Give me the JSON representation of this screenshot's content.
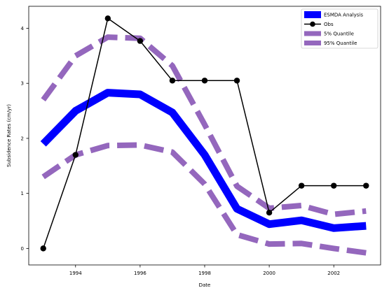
{
  "chart_data": {
    "type": "line",
    "xlabel": "Date",
    "ylabel": "Subsidence Rates (cm/yr)",
    "xlim": [
      1992.55,
      2003.45
    ],
    "ylim": [
      -0.3,
      4.4
    ],
    "xticks": [
      1994,
      1996,
      1998,
      2000,
      2002
    ],
    "yticks": [
      0,
      1,
      2,
      3,
      4
    ],
    "grid": false,
    "legend_position": "top-right",
    "x": [
      1993,
      1994,
      1995,
      1996,
      1997,
      1998,
      1999,
      2000,
      2001,
      2002,
      2003
    ],
    "series": [
      {
        "name": "ESMDA Analysis",
        "style": "solid-thick",
        "color": "#0000ff",
        "values": [
          1.9,
          2.5,
          2.83,
          2.8,
          2.47,
          1.7,
          0.72,
          0.44,
          0.51,
          0.37,
          0.41
        ]
      },
      {
        "name": "Obs",
        "style": "line-markers",
        "color": "#000000",
        "values": [
          0.0,
          1.7,
          4.18,
          3.77,
          3.05,
          3.05,
          3.05,
          0.65,
          1.14,
          1.14,
          1.14
        ]
      },
      {
        "name": "5% Quantile",
        "style": "dashed-thick",
        "color": "#9467bd",
        "values": [
          1.3,
          1.7,
          1.87,
          1.88,
          1.75,
          1.17,
          0.25,
          0.08,
          0.09,
          0.0,
          -0.08
        ]
      },
      {
        "name": "95% Quantile",
        "style": "dashed-thick",
        "color": "#9467bd",
        "values": [
          2.7,
          3.5,
          3.84,
          3.82,
          3.32,
          2.25,
          1.13,
          0.73,
          0.78,
          0.62,
          0.68
        ]
      }
    ]
  }
}
